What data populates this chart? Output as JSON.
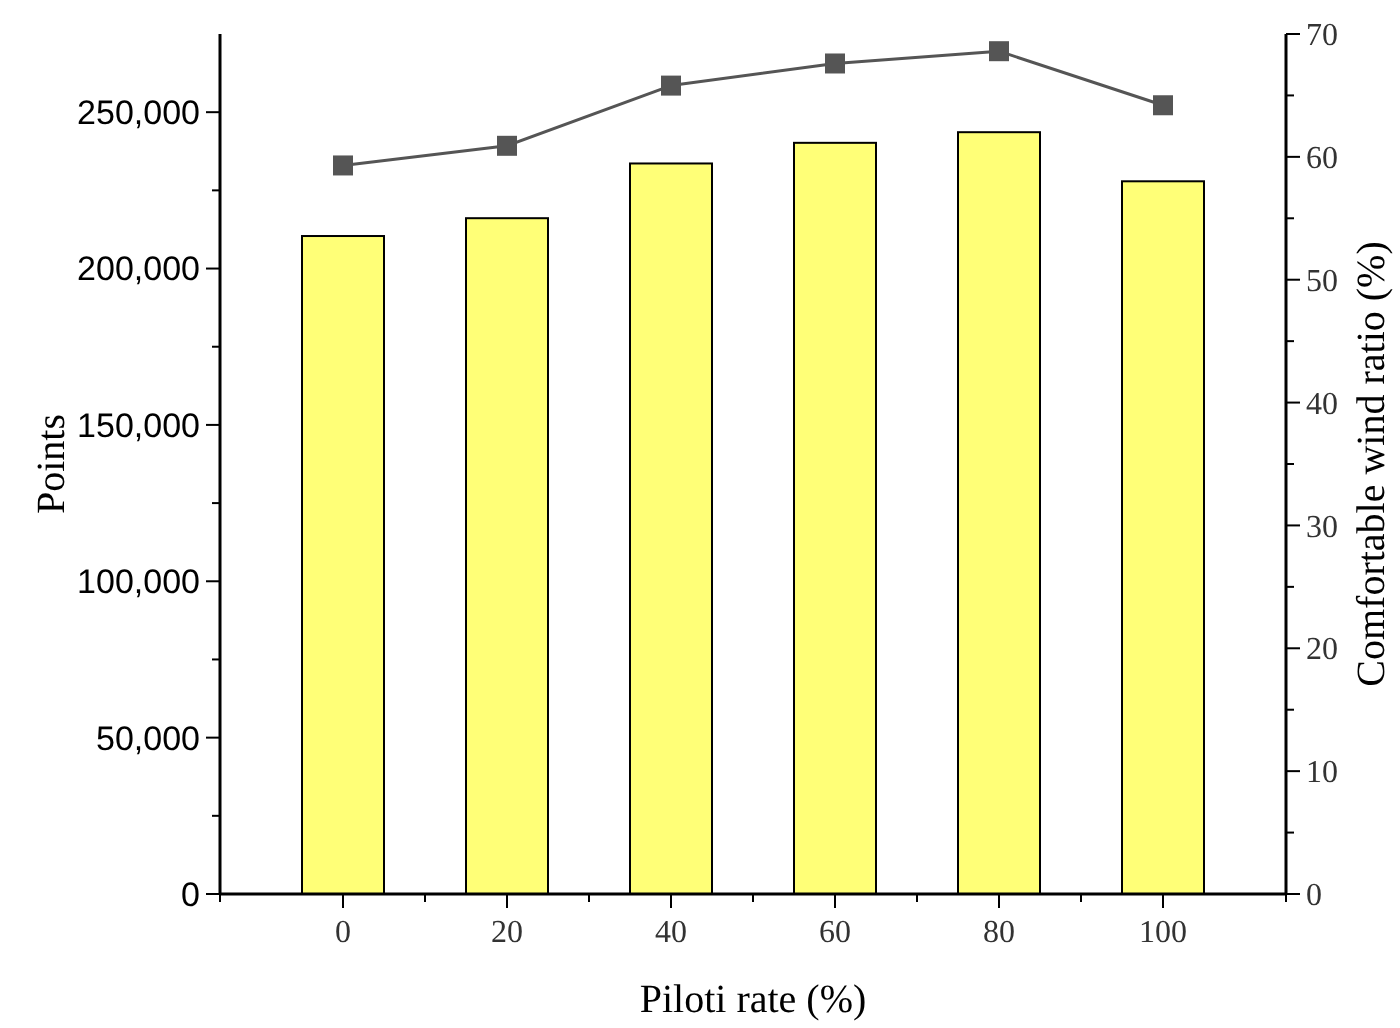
{
  "chart_data": {
    "type": "bar",
    "xlabel": "Piloti rate (%)",
    "ylabel": "Points",
    "y2label": "Comfortable wind ratio (%)",
    "categories": [
      "0",
      "20",
      "40",
      "60",
      "80",
      "100"
    ],
    "series": [
      {
        "color": "#ffff77",
        "values": [
          210400,
          216100,
          233600,
          240200,
          243600,
          227900
        ]
      },
      {
        "type": "line",
        "axis": "y2",
        "color": "#555555",
        "marker": "square",
        "values": [
          59.3,
          60.9,
          65.8,
          67.6,
          68.6,
          64.2
        ]
      }
    ],
    "ylim": [
      0,
      275000
    ],
    "yticks": [
      {
        "value": 0,
        "label": "0"
      },
      {
        "value": 50000,
        "label": "50,000"
      },
      {
        "value": 100000,
        "label": "100,000"
      },
      {
        "value": 150000,
        "label": "150,000"
      },
      {
        "value": 200000,
        "label": "200,000"
      },
      {
        "value": 250000,
        "label": "250,000"
      }
    ],
    "y2lim": [
      0,
      70
    ],
    "y2ticks": [
      0,
      10,
      20,
      30,
      40,
      50,
      60,
      70
    ],
    "grid": false
  }
}
